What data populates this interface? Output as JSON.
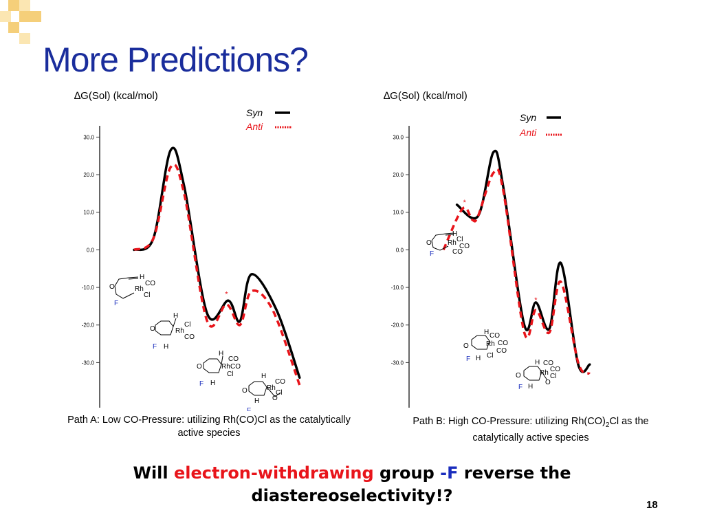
{
  "slide": {
    "title": "More Predictions?",
    "page_number": "18",
    "colors": {
      "title": "#1a2d9c",
      "deco": "#f5cf7a",
      "anti": "#e8141a",
      "syn": "#000000",
      "fluorine": "#1a2dbd"
    }
  },
  "chart_data": [
    {
      "type": "line",
      "ylabel": "∆G(Sol) (kcal/mol)",
      "ylim": [
        -42,
        33
      ],
      "yticks": [
        30,
        20,
        10,
        0,
        -10,
        -20,
        -30
      ],
      "ytick_labels": [
        "30.0",
        "20.0",
        "10.0",
        "0.0",
        "-10.0",
        "-20.0",
        "-30.0"
      ],
      "legend": {
        "placement": "top-right",
        "entries": [
          "Syn",
          "Anti"
        ]
      },
      "series": [
        {
          "name": "Syn",
          "style": "solid",
          "x": [
            0,
            0.5,
            0.95,
            1.3,
            1.9,
            2.45,
            2.75,
            3.05,
            3.7,
            4.3
          ],
          "y": [
            0,
            3,
            26.5,
            17,
            -17,
            -13.5,
            -19,
            -6.5,
            -16,
            -34
          ]
        },
        {
          "name": "Anti",
          "style": "dashed",
          "x": [
            0,
            0.5,
            0.95,
            1.3,
            1.9,
            2.4,
            2.75,
            3.05,
            3.6,
            4.3
          ],
          "y": [
            0,
            3,
            22,
            15,
            -19,
            -14.5,
            -20,
            -11,
            -16,
            -36
          ]
        }
      ],
      "annotations": [
        {
          "text": "*",
          "x": 2.4,
          "y": -12.5
        }
      ],
      "caption": "Path A: Low CO-Pressure: utilizing Rh(CO)Cl as the catalytically active species"
    },
    {
      "type": "line",
      "ylabel": "∆G(Sol) (kcal/mol)",
      "ylim": [
        -42,
        33
      ],
      "yticks": [
        30,
        20,
        10,
        0,
        -10,
        -20,
        -30
      ],
      "ytick_labels": [
        "30.0",
        "20.0",
        "10.0",
        "0.0",
        "-10.0",
        "-20.0",
        "-30.0"
      ],
      "legend": {
        "placement": "top-right",
        "entries": [
          "Syn",
          "Anti"
        ]
      },
      "series": [
        {
          "name": "Syn",
          "style": "solid",
          "x": [
            0.35,
            0.9,
            1.3,
            1.55,
            2.1,
            2.4,
            2.75,
            3.05,
            3.5,
            3.8
          ],
          "y": [
            12,
            9,
            26,
            17,
            -20,
            -14,
            -21,
            -3.5,
            -30.5,
            -30.5
          ]
        },
        {
          "name": "Anti",
          "style": "dashed",
          "x": [
            0,
            0.5,
            0.75,
            0.9,
            1.3,
            1.55,
            2.1,
            2.4,
            2.75,
            3.05,
            3.5,
            3.8
          ],
          "y": [
            0,
            11,
            8,
            9,
            20.5,
            16,
            -22,
            -16,
            -22,
            -8.5,
            -30,
            -33
          ]
        }
      ],
      "annotations": [
        {
          "text": "*",
          "x": 0.55,
          "y": 12
        },
        {
          "text": "*",
          "x": 2.4,
          "y": -14
        }
      ],
      "caption": "Path B: High CO-Pressure: utilizing Rh(CO)2Cl as the catalytically active species"
    }
  ],
  "structures": {
    "atoms": {
      "H": "H",
      "CO": "CO",
      "Cl": "Cl",
      "Rh": "Rh",
      "O": "O",
      "F": "F"
    }
  },
  "bottom": {
    "part1": "Will ",
    "part2": "electron-withdrawing",
    "part3": " group ",
    "part4": "-F",
    "part5": " reverse the",
    "line2": "diastereoselectivity!?"
  }
}
